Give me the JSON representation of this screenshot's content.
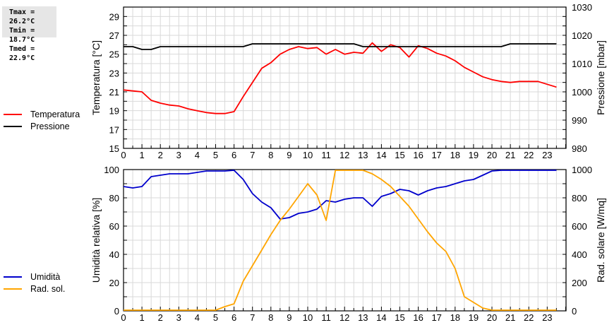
{
  "stats": {
    "tmax": "Tmax = 26.2°C",
    "tmin": "Tmin = 18.7°C",
    "tmed": "Tmed = 22.9°C"
  },
  "legend_top": [
    {
      "label": "Temperatura",
      "color": "#ff0000"
    },
    {
      "label": "Pressione",
      "color": "#000000"
    }
  ],
  "legend_bottom": [
    {
      "label": "Umidità",
      "color": "#0000cc"
    },
    {
      "label": "Rad. sol.",
      "color": "#ffa500"
    }
  ],
  "chart_data": [
    {
      "type": "line",
      "title": "",
      "xlabel": "",
      "ylabel": "Temperatura [°C]",
      "y2label": "Pressione [mbar]",
      "xlim": [
        0,
        24
      ],
      "ylim": [
        15,
        30
      ],
      "y2lim": [
        980,
        1030
      ],
      "x_ticks": [
        0,
        1,
        2,
        3,
        4,
        5,
        6,
        7,
        8,
        9,
        10,
        11,
        12,
        13,
        14,
        15,
        16,
        17,
        18,
        19,
        20,
        21,
        22,
        23
      ],
      "y_ticks": [
        15,
        17,
        19,
        21,
        23,
        25,
        27,
        29
      ],
      "y2_ticks": [
        980,
        990,
        1000,
        1010,
        1020,
        1030
      ],
      "grid": true,
      "legend_position": "left",
      "series": [
        {
          "name": "Temperatura",
          "axis": "left",
          "color": "#ff0000",
          "x": [
            0,
            0.5,
            1,
            1.5,
            2,
            2.5,
            3,
            3.5,
            4,
            4.5,
            5,
            5.5,
            6,
            6.5,
            7,
            7.5,
            8,
            8.5,
            9,
            9.5,
            10,
            10.5,
            11,
            11.5,
            12,
            12.5,
            13,
            13.5,
            14,
            14.5,
            15,
            15.5,
            16,
            16.5,
            17,
            17.5,
            18,
            18.5,
            19,
            19.5,
            20,
            20.5,
            21,
            21.5,
            22,
            22.5,
            23,
            23.5
          ],
          "values": [
            21.2,
            21.1,
            21.0,
            20.1,
            19.8,
            19.6,
            19.5,
            19.2,
            19.0,
            18.8,
            18.7,
            18.7,
            18.9,
            20.5,
            22.0,
            23.5,
            24.1,
            25.0,
            25.5,
            25.8,
            25.6,
            25.7,
            25.0,
            25.5,
            25.0,
            25.2,
            25.1,
            26.2,
            25.3,
            26.0,
            25.7,
            24.7,
            25.9,
            25.6,
            25.1,
            24.8,
            24.3,
            23.6,
            23.1,
            22.6,
            22.3,
            22.1,
            22.0,
            22.1,
            22.1,
            22.1,
            21.8,
            21.5
          ]
        },
        {
          "name": "Pressione",
          "axis": "right",
          "color": "#000000",
          "x": [
            0,
            0.5,
            1,
            1.5,
            2,
            6.5,
            7,
            12.5,
            13,
            20.5,
            21,
            23.5
          ],
          "values": [
            1016,
            1016,
            1015,
            1015,
            1016,
            1016,
            1017,
            1017,
            1016,
            1016,
            1017,
            1017
          ]
        }
      ]
    },
    {
      "type": "line",
      "title": "",
      "xlabel": "",
      "ylabel": "Umidità relativa [%]",
      "y2label": "Rad. solare [W/mq]",
      "xlim": [
        0,
        24
      ],
      "ylim": [
        0,
        100
      ],
      "y2lim": [
        0,
        1000
      ],
      "x_ticks": [
        0,
        1,
        2,
        3,
        4,
        5,
        6,
        7,
        8,
        9,
        10,
        11,
        12,
        13,
        14,
        15,
        16,
        17,
        18,
        19,
        20,
        21,
        22,
        23
      ],
      "y_ticks": [
        0,
        20,
        40,
        60,
        80,
        100
      ],
      "y2_ticks": [
        0,
        200,
        400,
        600,
        800,
        1000
      ],
      "grid": true,
      "legend_position": "left",
      "series": [
        {
          "name": "Umidità",
          "axis": "left",
          "color": "#0000cc",
          "x": [
            0,
            0.5,
            1,
            1.5,
            2,
            2.5,
            3,
            3.5,
            4,
            4.5,
            5,
            5.5,
            6,
            6.5,
            7,
            7.5,
            8,
            8.5,
            9,
            9.5,
            10,
            10.5,
            11,
            11.5,
            12,
            12.5,
            13,
            13.5,
            14,
            14.5,
            15,
            15.5,
            16,
            16.5,
            17,
            17.5,
            18,
            18.5,
            19,
            19.5,
            20,
            20.5,
            21,
            21.5,
            22,
            22.5,
            23,
            23.5
          ],
          "values": [
            88,
            87,
            88,
            95,
            96,
            97,
            97,
            97,
            98,
            99,
            99,
            99,
            100,
            93,
            83,
            77,
            73,
            65,
            66,
            69,
            70,
            72,
            78,
            77,
            79,
            80,
            80,
            74,
            81,
            83,
            86,
            85,
            82,
            85,
            87,
            88,
            90,
            92,
            93,
            96,
            99,
            100,
            100,
            100,
            100,
            100,
            100,
            100
          ]
        },
        {
          "name": "Rad. sol.",
          "axis": "right",
          "color": "#ffa500",
          "x": [
            0,
            5,
            5.5,
            6,
            6.5,
            7,
            7.5,
            8,
            8.5,
            9,
            9.5,
            10,
            10.5,
            11,
            11.5,
            12,
            12.5,
            13,
            13.5,
            14,
            14.5,
            15,
            15.5,
            16,
            16.5,
            17,
            17.5,
            18,
            18.5,
            19,
            19.5,
            20,
            20.5,
            21,
            22,
            23,
            23.5
          ],
          "values": [
            0,
            0,
            30,
            50,
            210,
            320,
            430,
            540,
            640,
            720,
            810,
            900,
            820,
            640,
            1000,
            1010,
            1010,
            1000,
            970,
            930,
            880,
            810,
            740,
            650,
            560,
            480,
            420,
            300,
            100,
            60,
            20,
            0,
            0,
            0,
            0,
            0,
            0
          ]
        }
      ]
    }
  ]
}
